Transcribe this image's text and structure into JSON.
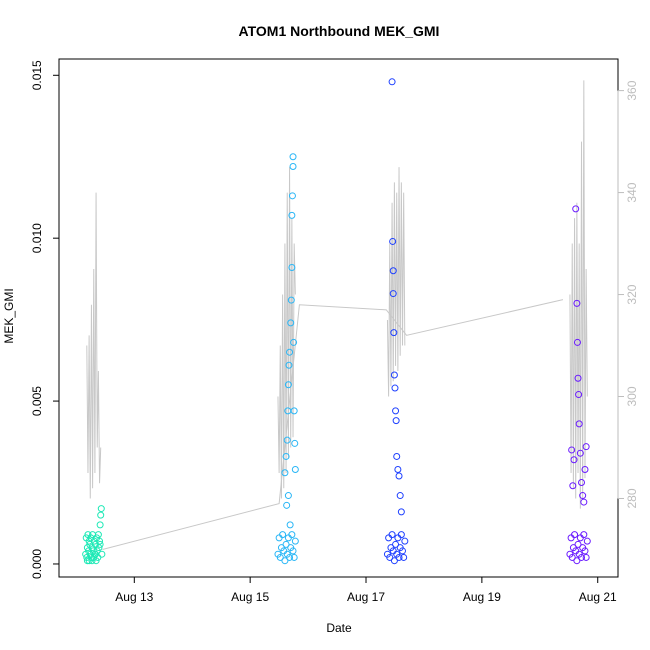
{
  "chart_data": {
    "type": "scatter",
    "title": "ATOM1 Northbound MEK_GMI",
    "xlabel": "Date",
    "ylabel": "MEK_GMI",
    "x_axis": {
      "ticks": [
        {
          "label": "Aug 13",
          "value": 13
        },
        {
          "label": "Aug 15",
          "value": 15
        },
        {
          "label": "Aug 17",
          "value": 17
        },
        {
          "label": "Aug 19",
          "value": 19
        },
        {
          "label": "Aug 21",
          "value": 21
        }
      ],
      "range": [
        11.7,
        21.35
      ]
    },
    "y_axis": {
      "ticks": [
        {
          "label": "0.000",
          "value": 0.0
        },
        {
          "label": "0.005",
          "value": 0.005
        },
        {
          "label": "0.010",
          "value": 0.01
        },
        {
          "label": "0.015",
          "value": 0.015
        }
      ],
      "range": [
        -0.0004,
        0.0155
      ]
    },
    "y2_axis": {
      "ticks": [
        {
          "label": "280",
          "value": 280
        },
        {
          "label": "300",
          "value": 300
        },
        {
          "label": "320",
          "value": 320
        },
        {
          "label": "340",
          "value": 340
        },
        {
          "label": "360",
          "value": 360
        }
      ],
      "range": [
        264.6,
        366.2
      ],
      "color": "#bdbdbd"
    },
    "grid": false,
    "series": [
      {
        "color": "#1de9b6",
        "x_range": [
          12.15,
          12.45
        ],
        "points": [
          [
            12.16,
            0.0003
          ],
          [
            12.17,
            0.0008
          ],
          [
            12.18,
            0.0002
          ],
          [
            12.19,
            0.0005
          ],
          [
            12.2,
            0.0009
          ],
          [
            12.21,
            0.0004
          ],
          [
            12.22,
            0.0001
          ],
          [
            12.23,
            0.0006
          ],
          [
            12.24,
            0.0003
          ],
          [
            12.25,
            0.0008
          ],
          [
            12.26,
            0.0002
          ],
          [
            12.27,
            0.0005
          ],
          [
            12.28,
            0.0009
          ],
          [
            12.29,
            0.0004
          ],
          [
            12.3,
            0.0002
          ],
          [
            12.31,
            0.0007
          ],
          [
            12.32,
            0.0003
          ],
          [
            12.33,
            0.0006
          ],
          [
            12.34,
            0.0001
          ],
          [
            12.35,
            0.0008
          ],
          [
            12.36,
            0.0004
          ],
          [
            12.37,
            0.0002
          ],
          [
            12.38,
            0.0009
          ],
          [
            12.39,
            0.0005
          ],
          [
            12.4,
            0.0007
          ],
          [
            12.41,
            0.0012
          ],
          [
            12.42,
            0.0015
          ],
          [
            12.43,
            0.0017
          ],
          [
            12.44,
            0.0003
          ],
          [
            12.19,
            0.0001
          ],
          [
            12.27,
            0.0001
          ],
          [
            12.33,
            0.0003
          ],
          [
            12.41,
            0.0006
          ],
          [
            12.22,
            0.0007
          ]
        ],
        "y2_values": [
          [
            12.18,
            310
          ],
          [
            12.2,
            285
          ],
          [
            12.22,
            312
          ],
          [
            12.24,
            280
          ],
          [
            12.26,
            318
          ],
          [
            12.28,
            282
          ],
          [
            12.3,
            325
          ],
          [
            12.32,
            285
          ],
          [
            12.34,
            340
          ],
          [
            12.36,
            290
          ],
          [
            12.38,
            305
          ],
          [
            12.4,
            283
          ],
          [
            12.42,
            290
          ]
        ]
      },
      {
        "color": "#29b6f6",
        "x_range": [
          15.45,
          15.8
        ],
        "points": [
          [
            15.48,
            0.0003
          ],
          [
            15.5,
            0.0008
          ],
          [
            15.52,
            0.0002
          ],
          [
            15.54,
            0.0005
          ],
          [
            15.56,
            0.0009
          ],
          [
            15.58,
            0.0004
          ],
          [
            15.6,
            0.0001
          ],
          [
            15.62,
            0.0006
          ],
          [
            15.64,
            0.0003
          ],
          [
            15.66,
            0.0008
          ],
          [
            15.68,
            0.0002
          ],
          [
            15.7,
            0.0005
          ],
          [
            15.72,
            0.0009
          ],
          [
            15.74,
            0.0004
          ],
          [
            15.76,
            0.0002
          ],
          [
            15.78,
            0.0007
          ],
          [
            15.6,
            0.0028
          ],
          [
            15.62,
            0.0033
          ],
          [
            15.64,
            0.0038
          ],
          [
            15.65,
            0.0047
          ],
          [
            15.66,
            0.0055
          ],
          [
            15.67,
            0.0061
          ],
          [
            15.68,
            0.0065
          ],
          [
            15.7,
            0.0074
          ],
          [
            15.71,
            0.0081
          ],
          [
            15.72,
            0.0091
          ],
          [
            15.72,
            0.0107
          ],
          [
            15.73,
            0.0113
          ],
          [
            15.74,
            0.0122
          ],
          [
            15.74,
            0.0125
          ],
          [
            15.75,
            0.0068
          ],
          [
            15.76,
            0.0047
          ],
          [
            15.77,
            0.0037
          ],
          [
            15.78,
            0.0029
          ],
          [
            15.63,
            0.0018
          ],
          [
            15.66,
            0.0021
          ],
          [
            15.69,
            0.0012
          ]
        ],
        "y2_values": [
          [
            15.48,
            300
          ],
          [
            15.5,
            285
          ],
          [
            15.52,
            310
          ],
          [
            15.54,
            280
          ],
          [
            15.56,
            320
          ],
          [
            15.58,
            282
          ],
          [
            15.6,
            330
          ],
          [
            15.62,
            285
          ],
          [
            15.64,
            340
          ],
          [
            15.66,
            288
          ],
          [
            15.68,
            345
          ],
          [
            15.7,
            290
          ],
          [
            15.72,
            335
          ],
          [
            15.74,
            292
          ],
          [
            15.76,
            330
          ],
          [
            15.78,
            320
          ]
        ]
      },
      {
        "color": "#1e40ff",
        "x_range": [
          17.35,
          17.7
        ],
        "points": [
          [
            17.37,
            0.0003
          ],
          [
            17.39,
            0.0008
          ],
          [
            17.41,
            0.0002
          ],
          [
            17.43,
            0.0005
          ],
          [
            17.45,
            0.0009
          ],
          [
            17.47,
            0.0004
          ],
          [
            17.49,
            0.0001
          ],
          [
            17.51,
            0.0006
          ],
          [
            17.53,
            0.0003
          ],
          [
            17.55,
            0.0008
          ],
          [
            17.57,
            0.0002
          ],
          [
            17.59,
            0.0005
          ],
          [
            17.61,
            0.0009
          ],
          [
            17.63,
            0.0004
          ],
          [
            17.65,
            0.0002
          ],
          [
            17.67,
            0.0007
          ],
          [
            17.45,
            0.0148
          ],
          [
            17.46,
            0.0099
          ],
          [
            17.47,
            0.009
          ],
          [
            17.47,
            0.0083
          ],
          [
            17.48,
            0.0071
          ],
          [
            17.49,
            0.0058
          ],
          [
            17.5,
            0.0054
          ],
          [
            17.51,
            0.0047
          ],
          [
            17.52,
            0.0044
          ],
          [
            17.53,
            0.0033
          ],
          [
            17.55,
            0.0029
          ],
          [
            17.57,
            0.0027
          ],
          [
            17.59,
            0.0021
          ],
          [
            17.61,
            0.0016
          ]
        ],
        "y2_values": [
          [
            17.37,
            315
          ],
          [
            17.39,
            300
          ],
          [
            17.41,
            330
          ],
          [
            17.43,
            302
          ],
          [
            17.45,
            338
          ],
          [
            17.47,
            303
          ],
          [
            17.49,
            342
          ],
          [
            17.51,
            306
          ],
          [
            17.53,
            340
          ],
          [
            17.55,
            305
          ],
          [
            17.57,
            345
          ],
          [
            17.59,
            308
          ],
          [
            17.61,
            342
          ],
          [
            17.63,
            310
          ],
          [
            17.65,
            340
          ],
          [
            17.67,
            310
          ]
        ]
      },
      {
        "color": "#6a1bff",
        "x_range": [
          20.5,
          20.85
        ],
        "points": [
          [
            20.52,
            0.0003
          ],
          [
            20.54,
            0.0008
          ],
          [
            20.56,
            0.0002
          ],
          [
            20.58,
            0.0005
          ],
          [
            20.6,
            0.0009
          ],
          [
            20.62,
            0.0004
          ],
          [
            20.64,
            0.0001
          ],
          [
            20.66,
            0.0006
          ],
          [
            20.68,
            0.0003
          ],
          [
            20.7,
            0.0008
          ],
          [
            20.72,
            0.0002
          ],
          [
            20.74,
            0.0005
          ],
          [
            20.76,
            0.0009
          ],
          [
            20.78,
            0.0004
          ],
          [
            20.8,
            0.0002
          ],
          [
            20.82,
            0.0007
          ],
          [
            20.55,
            0.0035
          ],
          [
            20.57,
            0.0024
          ],
          [
            20.59,
            0.0032
          ],
          [
            20.62,
            0.0109
          ],
          [
            20.64,
            0.008
          ],
          [
            20.65,
            0.0068
          ],
          [
            20.66,
            0.0057
          ],
          [
            20.67,
            0.0052
          ],
          [
            20.68,
            0.0043
          ],
          [
            20.7,
            0.0034
          ],
          [
            20.72,
            0.0025
          ],
          [
            20.74,
            0.0021
          ],
          [
            20.76,
            0.0019
          ],
          [
            20.78,
            0.0029
          ],
          [
            20.8,
            0.0036
          ]
        ],
        "y2_values": [
          [
            20.52,
            320
          ],
          [
            20.54,
            285
          ],
          [
            20.56,
            330
          ],
          [
            20.58,
            282
          ],
          [
            20.6,
            335
          ],
          [
            20.62,
            280
          ],
          [
            20.64,
            338
          ],
          [
            20.66,
            285
          ],
          [
            20.68,
            330
          ],
          [
            20.7,
            278
          ],
          [
            20.72,
            350
          ],
          [
            20.74,
            280
          ],
          [
            20.76,
            362
          ],
          [
            20.78,
            284
          ],
          [
            20.8,
            325
          ],
          [
            20.82,
            300
          ]
        ]
      }
    ],
    "connector_points": [
      [
        12.45,
        270
      ],
      [
        15.5,
        279
      ],
      [
        15.85,
        318
      ],
      [
        17.35,
        317
      ],
      [
        17.7,
        312
      ],
      [
        20.4,
        319
      ]
    ]
  }
}
